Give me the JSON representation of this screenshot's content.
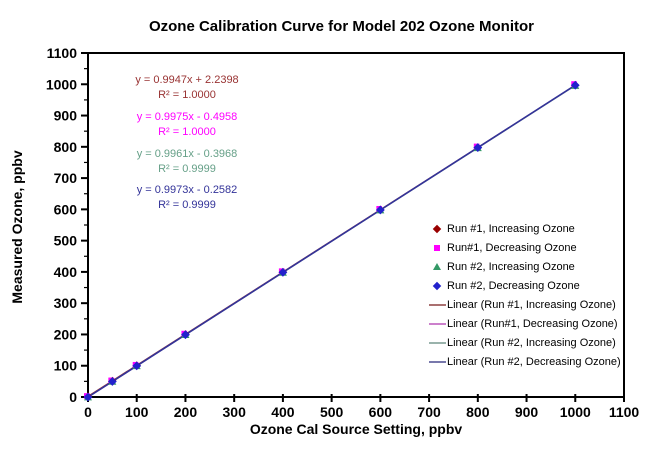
{
  "chart_data": {
    "type": "scatter",
    "title": "Ozone Calibration Curve for Model 202 Ozone Monitor",
    "xlabel": "Ozone Cal Source Setting, ppbv",
    "ylabel": "Measured Ozone, ppbv",
    "xlim": [
      0,
      1100
    ],
    "ylim": [
      0,
      1100
    ],
    "x_ticks": [
      0,
      100,
      200,
      300,
      400,
      500,
      600,
      700,
      800,
      900,
      1000,
      1100
    ],
    "y_ticks": [
      0,
      100,
      200,
      300,
      400,
      500,
      600,
      700,
      800,
      900,
      1000,
      1100
    ],
    "y_minor_tick_step": 50,
    "grid": false,
    "legend_position": "inside-lower-right",
    "plot_background": "#ffffff",
    "x": [
      0,
      50,
      100,
      200,
      400,
      600,
      800,
      1000
    ],
    "series": [
      {
        "name": "Run #1, Increasing Ozone",
        "marker": "diamond",
        "marker_color": "#990000",
        "line_color": "#993333",
        "values": [
          2.2,
          52.0,
          101.7,
          201.2,
          400.1,
          599.1,
          798.0,
          997.0
        ],
        "trendline": {
          "equation": "y = 0.9947x + 2.2398",
          "r2_label": "R² = 1.0000",
          "r2": 1.0,
          "color": "#993333"
        }
      },
      {
        "name": "Run#1, Decreasing Ozone",
        "marker": "square",
        "marker_color": "#FF00FF",
        "line_color": "#CC66CC",
        "values": [
          -0.5,
          49.4,
          99.3,
          199.0,
          398.5,
          598.0,
          797.5,
          997.0
        ],
        "trendline": {
          "equation": "y = 0.9975x - 0.4958",
          "r2_label": "R² = 1.0000",
          "r2": 1.0,
          "color": "#FF00FF"
        }
      },
      {
        "name": "Run #2, Increasing Ozone",
        "marker": "triangle",
        "marker_color": "#339966",
        "line_color": "#7FA99B",
        "values": [
          -0.4,
          49.4,
          99.2,
          198.8,
          398.0,
          597.3,
          796.5,
          995.7
        ],
        "trendline": {
          "equation": "y = 0.9961x - 0.3968",
          "r2_label": "R² = 0.9999",
          "r2": 0.9999,
          "color": "#66A088"
        }
      },
      {
        "name": "Run #2, Decreasing Ozone",
        "marker": "diamond",
        "marker_color": "#2222CC",
        "line_color": "#333399",
        "values": [
          -0.3,
          49.6,
          99.5,
          199.2,
          398.7,
          598.1,
          797.6,
          997.0
        ],
        "trendline": {
          "equation": "y = 0.9973x - 0.2582",
          "r2_label": "R² = 0.9999",
          "r2": 0.9999,
          "color": "#333399"
        }
      }
    ],
    "legend": [
      {
        "label": "Run #1, Increasing Ozone",
        "swatch": "diamond",
        "color": "#990000"
      },
      {
        "label": "Run#1, Decreasing Ozone",
        "swatch": "square",
        "color": "#FF00FF"
      },
      {
        "label": "Run #2, Increasing Ozone",
        "swatch": "triangle",
        "color": "#339966"
      },
      {
        "label": "Run #2, Decreasing Ozone",
        "swatch": "diamond",
        "color": "#2222CC"
      },
      {
        "label": "Linear (Run #1, Increasing Ozone)",
        "swatch": "line",
        "color": "#AA7070"
      },
      {
        "label": "Linear (Run#1, Decreasing Ozone)",
        "swatch": "line",
        "color": "#CC80CC"
      },
      {
        "label": "Linear (Run #2, Increasing Ozone)",
        "swatch": "line",
        "color": "#9AB3AC"
      },
      {
        "label": "Linear (Run #2, Decreasing Ozone)",
        "swatch": "line",
        "color": "#7878AC"
      }
    ]
  }
}
